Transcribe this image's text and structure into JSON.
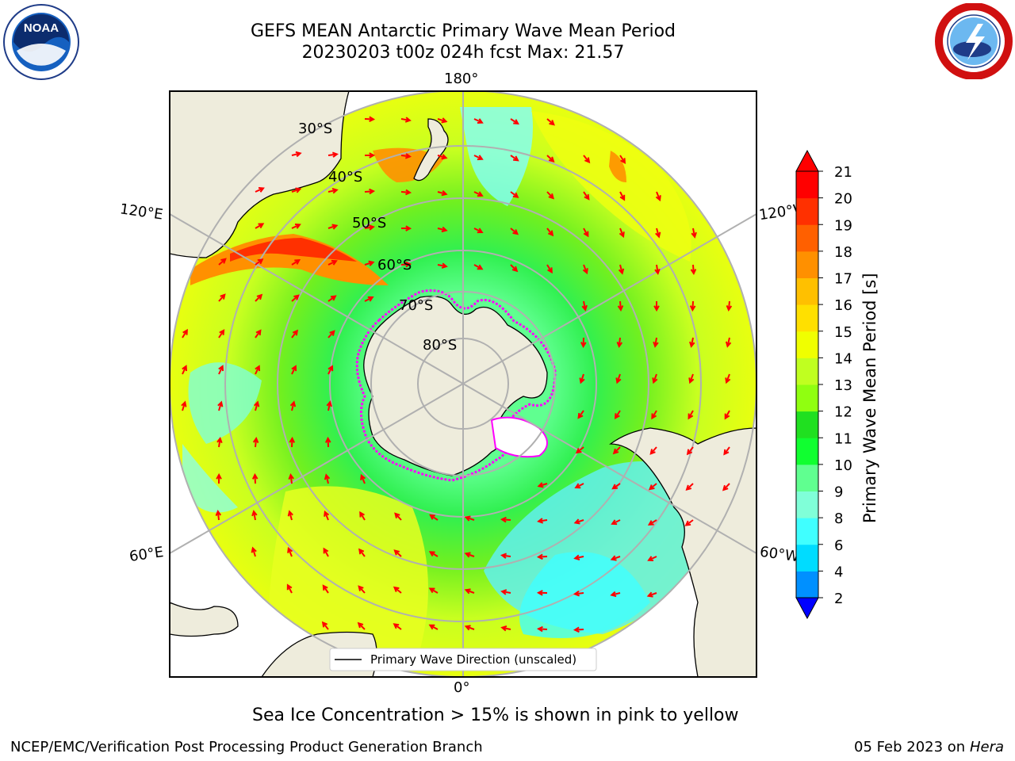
{
  "header": {
    "title_line1": "GEFS MEAN Antarctic Primary Wave Mean Period",
    "title_line2": "20230203 t00z 024h fcst   Max: 21.57"
  },
  "map": {
    "meridian_labels": {
      "top": "180°",
      "bottom": "0°",
      "left_upper": "120°E",
      "right_upper": "120°W",
      "left_lower": "60°E",
      "right_lower": "60°W"
    },
    "latitude_labels": [
      "30°S",
      "40°S",
      "50°S",
      "60°S",
      "70°S",
      "80°S"
    ],
    "legend": "Primary Wave Direction (unscaled)",
    "colors": {
      "land": "#eeecdc",
      "arrow": "#ff0000",
      "grid": "#b0b0b0",
      "sea_ice": "#ff00ff"
    }
  },
  "colorbar": {
    "label": "Primary Wave Mean Period [s]",
    "ticks": [
      "2",
      "4",
      "6",
      "8",
      "9",
      "10",
      "11",
      "12",
      "13",
      "14",
      "15",
      "16",
      "17",
      "18",
      "19",
      "20",
      "21"
    ],
    "colors": [
      "#0020ff",
      "#0090ff",
      "#00dcff",
      "#40ffff",
      "#80ffd8",
      "#60ff90",
      "#10ff30",
      "#20e020",
      "#90ff10",
      "#c0ff20",
      "#f0ff00",
      "#ffe000",
      "#ffc000",
      "#ff9000",
      "#ff6000",
      "#ff3000",
      "#ff0000"
    ],
    "extend_low": "#0000ff",
    "extend_high": "#ff0000"
  },
  "caption": "Sea Ice Concentration > 15% is shown in pink to yellow",
  "footer": {
    "left": "NCEP/EMC/Verification Post Processing Product Generation Branch",
    "right_date": "05 Feb 2023 on",
    "right_machine": "Hera"
  },
  "logos": {
    "noaa_text": "NOAA",
    "nws_text": "NATIONAL WEATHER SERVICE"
  }
}
